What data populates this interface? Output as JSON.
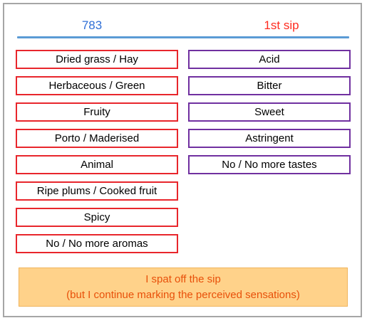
{
  "header": {
    "sample_code": "783",
    "sip_label": "1st sip"
  },
  "aromas": [
    "Dried grass / Hay",
    "Herbaceous / Green",
    "Fruity",
    "Porto / Maderised",
    "Animal",
    "Ripe plums / Cooked fruit",
    "Spicy",
    "No / No more aromas"
  ],
  "tastes": [
    "Acid",
    "Bitter",
    "Sweet",
    "Astringent",
    "No / No more tastes"
  ],
  "spit_button": {
    "line1": "I spat off the sip",
    "line2": "(but I continue marking the perceived sensations)"
  },
  "colors": {
    "aroma_border": "#e8262c",
    "taste_border": "#7030a0",
    "code_text": "#2f6fd6",
    "sip_text": "#ff2b1f",
    "divider": "#5b9bd5",
    "spit_fill": "#ffd28a",
    "spit_text": "#e8500a"
  }
}
